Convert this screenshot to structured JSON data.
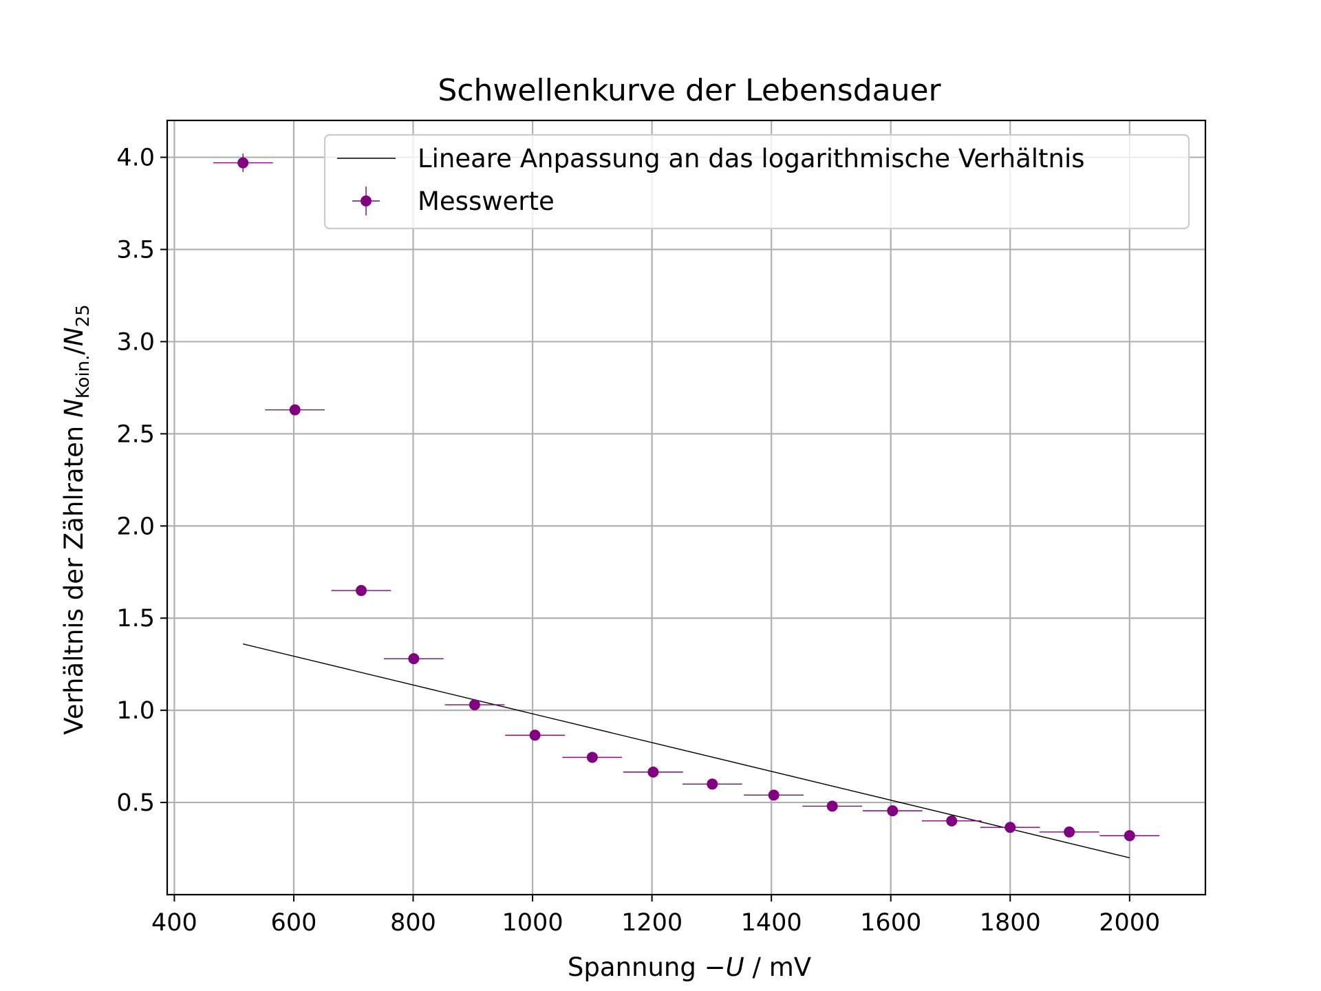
{
  "chart_data": {
    "type": "scatter",
    "title": "Schwellenkurve der Lebensdauer",
    "xlabel_prefix": "Spannung ",
    "xlabel_sign": "−",
    "xlabel_var": "U",
    "xlabel_suffix": " / mV",
    "ylabel_prefix": "Verhältnis der Zählraten ",
    "ylabel_n": "N",
    "ylabel_sub1": "Koin.",
    "ylabel_slash": "/",
    "ylabel_sub2": "25",
    "xlim": [
      388,
      2127
    ],
    "ylim": [
      0.0,
      4.2
    ],
    "x_ticks": [
      400,
      600,
      800,
      1000,
      1200,
      1400,
      1600,
      1800,
      2000
    ],
    "x_tick_labels": [
      "400",
      "600",
      "800",
      "1000",
      "1200",
      "1400",
      "1600",
      "1800",
      "2000"
    ],
    "y_ticks": [
      0.5,
      1.0,
      1.5,
      2.0,
      2.5,
      3.0,
      3.5,
      4.0
    ],
    "y_tick_labels": [
      "0.5",
      "1.0",
      "1.5",
      "2.0",
      "2.5",
      "3.0",
      "3.5",
      "4.0"
    ],
    "grid": true,
    "legend_position": "top-right",
    "series": [
      {
        "name": "Lineare Anpassung an das logarithmische Verhältnis",
        "kind": "line",
        "color": "#000000",
        "x": [
          515,
          2000
        ],
        "y": [
          1.36,
          0.2
        ]
      },
      {
        "name": "Messwerte",
        "kind": "errorbar",
        "color": "#800080",
        "x": [
          515,
          602,
          713,
          801,
          903,
          1004,
          1100,
          1202,
          1301,
          1404,
          1502,
          1603,
          1702,
          1800,
          1899,
          2000
        ],
        "y": [
          3.97,
          2.63,
          1.65,
          1.28,
          1.03,
          0.865,
          0.745,
          0.665,
          0.6,
          0.54,
          0.48,
          0.455,
          0.4,
          0.365,
          0.34,
          0.32
        ],
        "xerr": [
          50,
          50,
          50,
          50,
          50,
          50,
          50,
          50,
          50,
          50,
          50,
          50,
          50,
          50,
          50,
          50
        ],
        "yerr": [
          0.05,
          0.01,
          0.01,
          0.01,
          0.01,
          0.01,
          0.01,
          0.01,
          0.01,
          0.01,
          0.01,
          0.01,
          0.01,
          0.01,
          0.01,
          0.01
        ]
      }
    ]
  }
}
